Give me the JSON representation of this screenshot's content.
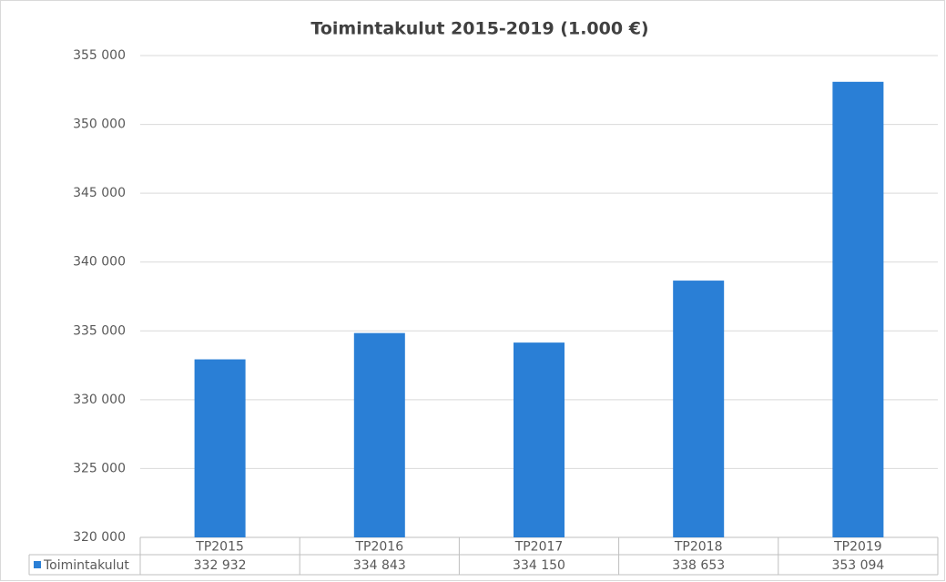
{
  "chart_data": {
    "type": "bar",
    "title": "Toimintakulut 2015-2019 (1.000 €)",
    "categories": [
      "TP2015",
      "TP2016",
      "TP2017",
      "TP2018",
      "TP2019"
    ],
    "series": [
      {
        "name": "Toimintakulut",
        "color": "#2a7fd6",
        "values": [
          332932,
          334843,
          334150,
          338653,
          353094
        ],
        "value_labels": [
          "332 932",
          "334 843",
          "334 150",
          "338 653",
          "353 094"
        ]
      }
    ],
    "ylim": [
      320000,
      355000
    ],
    "yticks": [
      {
        "value": 320000,
        "label": "320 000"
      },
      {
        "value": 325000,
        "label": "325 000"
      },
      {
        "value": 330000,
        "label": "330 000"
      },
      {
        "value": 335000,
        "label": "335 000"
      },
      {
        "value": 340000,
        "label": "340 000"
      },
      {
        "value": 345000,
        "label": "345 000"
      },
      {
        "value": 350000,
        "label": "350 000"
      },
      {
        "value": 355000,
        "label": "355 000"
      }
    ],
    "grid": true
  }
}
